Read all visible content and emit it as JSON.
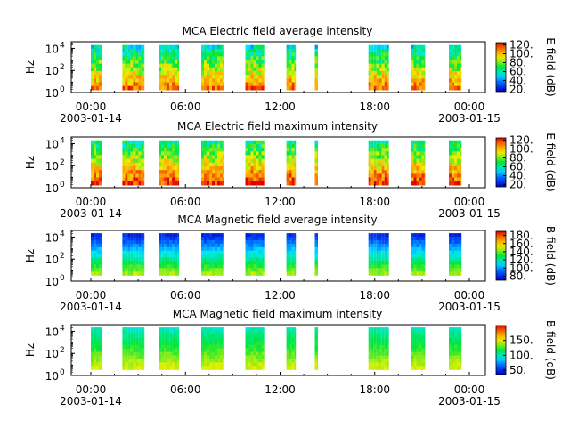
{
  "chart_data": [
    {
      "type": "heatmap",
      "title": "MCA  Electric field average intensity",
      "ylabel": "Hz",
      "y_scale": "log",
      "y_ticks": [
        "10",
        "10",
        "10"
      ],
      "y_tick_exp": [
        "0",
        "2",
        "4"
      ],
      "x_ticks": [
        "00:00",
        "06:00",
        "12:00",
        "18:00",
        "00:00"
      ],
      "x_dates": [
        "2003-01-14",
        "2003-01-15"
      ],
      "colorbar_label": "E field (dB)",
      "colorbar_ticks": [
        "20.",
        "40.",
        "60.",
        "80.",
        "100.",
        "120."
      ],
      "colorbar_range": [
        15,
        125
      ],
      "colorscale": "rainbow",
      "active_windows_hours": [
        [
          0.0,
          0.7
        ],
        [
          2.0,
          3.4
        ],
        [
          4.3,
          5.6
        ],
        [
          7.0,
          8.4
        ],
        [
          9.8,
          11.0
        ],
        [
          12.4,
          13.0
        ],
        [
          14.2,
          14.4
        ],
        [
          17.6,
          18.9
        ],
        [
          20.3,
          21.2
        ],
        [
          22.7,
          23.5
        ]
      ],
      "intensity_profile": "low frequencies 90–120 dB (orange/yellow), high frequencies 50–70 dB (green/cyan)"
    },
    {
      "type": "heatmap",
      "title": "MCA  Electric field maximum intensity",
      "ylabel": "Hz",
      "y_scale": "log",
      "y_ticks": [
        "10",
        "10",
        "10"
      ],
      "y_tick_exp": [
        "0",
        "2",
        "4"
      ],
      "x_ticks": [
        "00:00",
        "06:00",
        "12:00",
        "18:00",
        "00:00"
      ],
      "x_dates": [
        "2003-01-14",
        "2003-01-15"
      ],
      "colorbar_label": "E field (dB)",
      "colorbar_ticks": [
        "20.",
        "40.",
        "60.",
        "80.",
        "100.",
        "120."
      ],
      "colorbar_range": [
        15,
        125
      ],
      "colorscale": "rainbow",
      "active_windows_hours": [
        [
          0.0,
          0.7
        ],
        [
          2.0,
          3.4
        ],
        [
          4.3,
          5.6
        ],
        [
          7.0,
          8.4
        ],
        [
          9.8,
          11.0
        ],
        [
          12.4,
          13.0
        ],
        [
          14.2,
          14.4
        ],
        [
          17.6,
          18.9
        ],
        [
          20.3,
          21.2
        ],
        [
          22.7,
          23.5
        ]
      ],
      "intensity_profile": "low frequencies 90–120 dB (orange/yellow), high frequencies 55–75 dB (green)"
    },
    {
      "type": "heatmap",
      "title": "MCA  Magnetic field average intensity",
      "ylabel": "Hz",
      "y_scale": "log",
      "y_ticks": [
        "10",
        "10",
        "10"
      ],
      "y_tick_exp": [
        "0",
        "2",
        "4"
      ],
      "x_ticks": [
        "00:00",
        "06:00",
        "12:00",
        "18:00",
        "00:00"
      ],
      "x_dates": [
        "2003-01-14",
        "2003-01-15"
      ],
      "colorbar_label": "B field (dB)",
      "colorbar_ticks": [
        "80.",
        "100.",
        "120.",
        "140.",
        "160.",
        "180."
      ],
      "colorbar_range": [
        70,
        190
      ],
      "colorscale": "rainbow",
      "active_windows_hours": [
        [
          0.0,
          0.7
        ],
        [
          2.0,
          3.4
        ],
        [
          4.3,
          5.6
        ],
        [
          7.0,
          8.4
        ],
        [
          9.8,
          11.0
        ],
        [
          12.4,
          13.0
        ],
        [
          14.2,
          14.4
        ],
        [
          17.6,
          18.9
        ],
        [
          20.3,
          21.2
        ],
        [
          22.7,
          23.5
        ]
      ],
      "intensity_profile": "low frequencies 130–150 dB (green), high frequencies 75–95 dB (blue)"
    },
    {
      "type": "heatmap",
      "title": "MCA  Magnetic field maximum intensity",
      "ylabel": "Hz",
      "y_scale": "log",
      "y_ticks": [
        "10",
        "10",
        "10"
      ],
      "y_tick_exp": [
        "0",
        "2",
        "4"
      ],
      "x_ticks": [
        "00:00",
        "06:00",
        "12:00",
        "18:00",
        "00:00"
      ],
      "x_dates": [
        "2003-01-14",
        "2003-01-15"
      ],
      "colorbar_label": "B field (dB)",
      "colorbar_ticks": [
        "50.",
        "100.",
        "150."
      ],
      "colorbar_range": [
        35,
        200
      ],
      "colorscale": "rainbow",
      "active_windows_hours": [
        [
          0.0,
          0.7
        ],
        [
          2.0,
          3.4
        ],
        [
          4.3,
          5.6
        ],
        [
          7.0,
          8.4
        ],
        [
          9.8,
          11.0
        ],
        [
          12.4,
          13.0
        ],
        [
          14.2,
          14.4
        ],
        [
          17.6,
          18.9
        ],
        [
          20.3,
          21.2
        ],
        [
          22.7,
          23.5
        ]
      ],
      "intensity_profile": "low frequencies 130–150 dB (yellow-green), high frequencies 95–110 dB (cyan)"
    }
  ]
}
